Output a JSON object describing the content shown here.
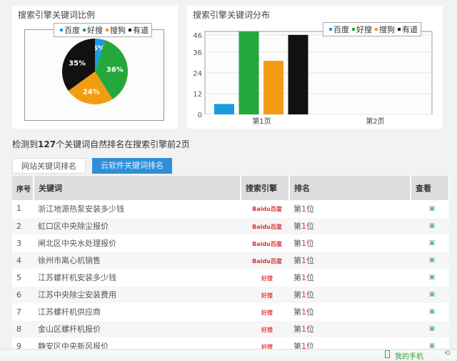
{
  "pie_panel": {
    "title": "搜索引擎关键词比例"
  },
  "bar_panel": {
    "title": "搜索引擎关键词分布"
  },
  "colors": {
    "百度": "#1a9be0",
    "好搜": "#24a83b",
    "搜狗": "#f39c12",
    "有道": "#111111",
    "tab_active": "#2d8fd8"
  },
  "chart_data": [
    {
      "type": "pie",
      "title": "搜索引擎关键词比例",
      "legend": [
        "百度",
        "好搜",
        "搜狗",
        "有道"
      ],
      "legend_position": "top",
      "values": [
        5,
        36,
        24,
        35
      ],
      "labels": [
        "5%",
        "36%",
        "24%",
        "35%"
      ]
    },
    {
      "type": "bar",
      "title": "搜索引擎关键词分布",
      "categories": [
        "第1页",
        "第2页"
      ],
      "series": [
        {
          "name": "百度",
          "values": [
            6,
            0
          ]
        },
        {
          "name": "好搜",
          "values": [
            48,
            0
          ]
        },
        {
          "name": "搜狗",
          "values": [
            31,
            0
          ]
        },
        {
          "name": "有道",
          "values": [
            46,
            0
          ]
        }
      ],
      "yticks": [
        "0",
        "12",
        "24",
        "36",
        "46"
      ],
      "ylim": [
        0,
        48
      ],
      "grid": true,
      "legend_position": "top-right"
    }
  ],
  "summary": {
    "pre": "检测到",
    "count": "127",
    "post": "个关键词自然排名在搜索引擎前2页"
  },
  "tabs": [
    "网站关键词排名",
    "云软件关键词排名"
  ],
  "table": {
    "headers": [
      "序号",
      "关键词",
      "搜索引擎",
      "排名",
      "查看"
    ],
    "rows": [
      {
        "no": "1",
        "kw": "浙江地源热泵安装多少钱",
        "engine": "Baidu百度",
        "rank": "1"
      },
      {
        "no": "2",
        "kw": "虹口区中央除尘报价",
        "engine": "Baidu百度",
        "rank": "1"
      },
      {
        "no": "3",
        "kw": "闸北区中央水处理报价",
        "engine": "Baidu百度",
        "rank": "1"
      },
      {
        "no": "4",
        "kw": "徐州市离心机销售",
        "engine": "Baidu百度",
        "rank": "1"
      },
      {
        "no": "5",
        "kw": "江苏螺杆机安装多少钱",
        "engine": "好搜",
        "rank": "1"
      },
      {
        "no": "6",
        "kw": "江苏中央除尘安装费用",
        "engine": "好搜",
        "rank": "1"
      },
      {
        "no": "7",
        "kw": "江苏螺杆机供应商",
        "engine": "好搜",
        "rank": "1"
      },
      {
        "no": "8",
        "kw": "金山区螺杆机报价",
        "engine": "好搜",
        "rank": "1"
      },
      {
        "no": "9",
        "kw": "静安区中央新风报价",
        "engine": "好搜",
        "rank": "1"
      }
    ],
    "rank_prefix": "第",
    "rank_suffix": "位"
  },
  "status": {
    "phone": "我的手机"
  }
}
